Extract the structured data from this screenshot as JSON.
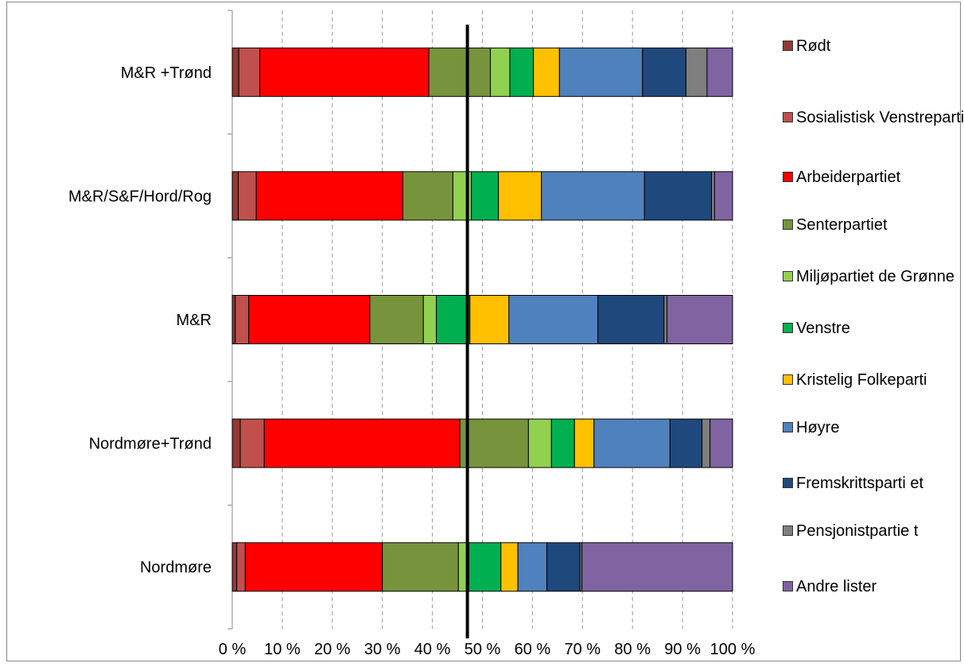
{
  "chart_data": {
    "type": "bar",
    "orientation": "horizontal",
    "stacked": "percent",
    "categories": [
      "M&R +Trønd",
      "M&R/S&F/Hord/Rog",
      "M&R",
      "Nordmøre+Trønd",
      "Nordmøre"
    ],
    "xlim": [
      0,
      100
    ],
    "x_ticks": [
      "0 %",
      "10 %",
      "20 %",
      "30 %",
      "40 %",
      "50 %",
      "60 %",
      "70 %",
      "80 %",
      "90 %",
      "100 %"
    ],
    "grid": "vertical dashed",
    "reference_line": 47,
    "legend_position": "right",
    "series": [
      {
        "name": "Rødt",
        "color": "#953735",
        "values": [
          1.3,
          1.2,
          0.6,
          1.6,
          0.9
        ]
      },
      {
        "name": "Sosialistisk Venstreparti",
        "color": "#c0504d",
        "values": [
          4.2,
          3.6,
          2.7,
          4.8,
          1.7
        ]
      },
      {
        "name": "Arbeiderpartiet",
        "color": "#ff0000",
        "values": [
          33.8,
          29.3,
          24.2,
          39.1,
          27.4
        ]
      },
      {
        "name": "Senterpartiet",
        "color": "#77933c",
        "values": [
          12.3,
          10.0,
          10.7,
          13.7,
          15.2
        ]
      },
      {
        "name": "Miljøpartiet de Grønne",
        "color": "#92d050",
        "values": [
          3.9,
          3.7,
          2.6,
          4.6,
          2.1
        ]
      },
      {
        "name": "Venstre",
        "color": "#00b050",
        "values": [
          4.7,
          5.4,
          6.7,
          4.6,
          6.4
        ]
      },
      {
        "name": "Kristelig Folkeparti",
        "color": "#ffc000",
        "values": [
          5.2,
          8.6,
          7.8,
          3.9,
          3.4
        ]
      },
      {
        "name": "Høyre",
        "color": "#4f81bd",
        "values": [
          16.6,
          20.6,
          17.8,
          15.2,
          5.8
        ]
      },
      {
        "name": "Fremskrittsparti et",
        "color": "#1f497d",
        "values": [
          8.7,
          13.4,
          13.2,
          6.4,
          6.6
        ]
      },
      {
        "name": "Pensjonistpartie t",
        "color": "#7f7f7f",
        "values": [
          4.2,
          0.6,
          0.6,
          1.6,
          0.4
        ]
      },
      {
        "name": "Andre lister",
        "color": "#8064a2",
        "values": [
          5.1,
          3.6,
          13.1,
          4.5,
          30.1
        ]
      }
    ]
  }
}
